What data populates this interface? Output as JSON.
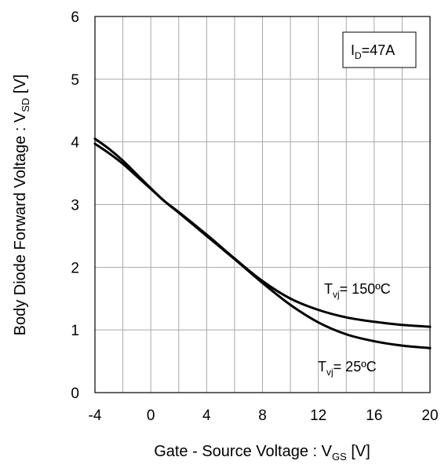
{
  "chart_data": {
    "type": "line",
    "title": "",
    "xlabel": {
      "main": "Gate - Source Voltage : V",
      "sub": "GS",
      "tail": " [V]"
    },
    "ylabel": {
      "main": "Body Diode  Forward Voltage : V",
      "sub": "SD",
      "tail": " [V]"
    },
    "xlim": [
      -4,
      20
    ],
    "ylim": [
      0,
      6
    ],
    "x_ticks": [
      -4,
      0,
      4,
      8,
      12,
      16,
      20
    ],
    "x_tick_labels": [
      "-4",
      "0",
      "4",
      "8",
      "12",
      "16",
      "20"
    ],
    "y_ticks": [
      0,
      1,
      2,
      3,
      4,
      5,
      6
    ],
    "y_tick_labels": [
      "0",
      "1",
      "2",
      "3",
      "4",
      "5",
      "6"
    ],
    "x_grid": [
      -4,
      -2,
      0,
      2,
      4,
      6,
      8,
      10,
      12,
      14,
      16,
      18,
      20
    ],
    "y_grid": [
      0,
      1,
      2,
      3,
      4,
      5,
      6
    ],
    "grid": true,
    "legend_box": {
      "main": "I",
      "sub": "D",
      "tail": "=47A"
    },
    "series": [
      {
        "name": "Tvj= 150ºC",
        "label": {
          "main": "T",
          "sub": "vj",
          "tail": "= 150ºC"
        },
        "color": "#000000",
        "x": [
          -4,
          -3,
          -2,
          -1,
          0,
          1,
          2,
          4,
          6,
          8,
          10,
          12,
          14,
          16,
          18,
          20
        ],
        "y": [
          3.97,
          3.82,
          3.65,
          3.45,
          3.25,
          3.05,
          2.88,
          2.52,
          2.14,
          1.78,
          1.5,
          1.32,
          1.2,
          1.13,
          1.08,
          1.05
        ]
      },
      {
        "name": "Tvj= 25ºC",
        "label": {
          "main": "T",
          "sub": "vj",
          "tail": "= 25ºC"
        },
        "color": "#000000",
        "x": [
          -4,
          -3,
          -2,
          -1,
          0,
          1,
          2,
          4,
          6,
          8,
          10,
          12,
          14,
          16,
          18,
          20
        ],
        "y": [
          4.05,
          3.89,
          3.7,
          3.48,
          3.26,
          3.05,
          2.87,
          2.5,
          2.13,
          1.75,
          1.4,
          1.12,
          0.93,
          0.82,
          0.75,
          0.71
        ]
      }
    ]
  }
}
